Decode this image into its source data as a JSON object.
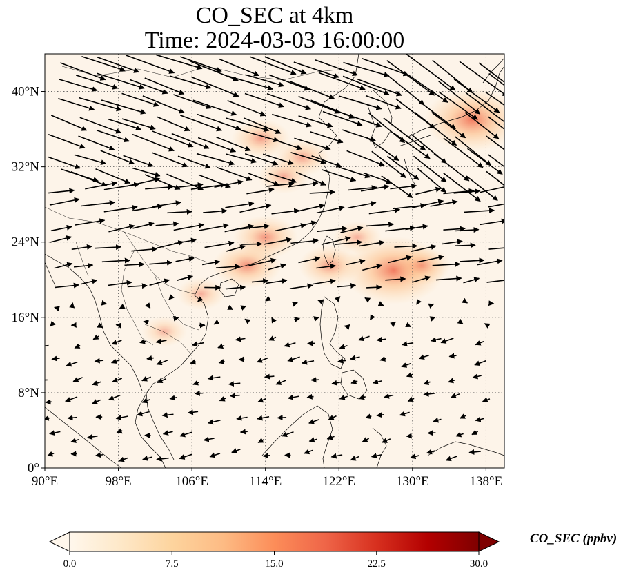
{
  "title": {
    "line1": "CO_SEC at 4km",
    "line2": "Time: 2024-03-03 16:00:00"
  },
  "map": {
    "lon_range": [
      90,
      140
    ],
    "lat_range": [
      0,
      44
    ],
    "gridlines": true,
    "gridline_style": "dotted",
    "land_color": "#fdf4e9",
    "coastline_color": "#000000",
    "x_ticks": [
      {
        "value": 90,
        "label": "90°E"
      },
      {
        "value": 98,
        "label": "98°E"
      },
      {
        "value": 106,
        "label": "106°E"
      },
      {
        "value": 114,
        "label": "114°E"
      },
      {
        "value": 122,
        "label": "122°E"
      },
      {
        "value": 130,
        "label": "130°E"
      },
      {
        "value": 138,
        "label": "138°E"
      }
    ],
    "y_ticks": [
      {
        "value": 0,
        "label": "0°"
      },
      {
        "value": 8,
        "label": "8°N"
      },
      {
        "value": 16,
        "label": "16°N"
      },
      {
        "value": 24,
        "label": "24°N"
      },
      {
        "value": 32,
        "label": "32°N"
      },
      {
        "value": 40,
        "label": "40°N"
      }
    ],
    "wind_arrows": "black quiver field (4 km winds), predominantly westerly north of 18°N, easterly/northeasterly south of 16°N",
    "plumes": [
      {
        "lon": 113.5,
        "lat": 35,
        "value": 9
      },
      {
        "lon": 118,
        "lat": 33,
        "value": 8
      },
      {
        "lon": 116,
        "lat": 31,
        "value": 7
      },
      {
        "lon": 114,
        "lat": 24.5,
        "value": 11
      },
      {
        "lon": 112,
        "lat": 21.5,
        "value": 12
      },
      {
        "lon": 121,
        "lat": 21.5,
        "value": 10
      },
      {
        "lon": 124,
        "lat": 24.5,
        "value": 6
      },
      {
        "lon": 128,
        "lat": 21,
        "value": 22
      },
      {
        "lon": 131,
        "lat": 21.5,
        "value": 9
      },
      {
        "lon": 136.5,
        "lat": 37,
        "value": 20
      },
      {
        "lon": 107,
        "lat": 18.5,
        "value": 6
      },
      {
        "lon": 103,
        "lat": 14.5,
        "value": 5
      }
    ]
  },
  "colorbar": {
    "label": "CO_SEC (ppbv)",
    "range": [
      0.0,
      30.0
    ],
    "ticks": [
      "0.0",
      "7.5",
      "15.0",
      "22.5",
      "30.0"
    ],
    "extend": "both",
    "colormap": "OrRd",
    "colors": [
      "#fff7ec",
      "#fee8c8",
      "#fdd49e",
      "#fdbb84",
      "#fc8d59",
      "#ef6548",
      "#d7301f",
      "#b30000",
      "#7f0000"
    ]
  }
}
